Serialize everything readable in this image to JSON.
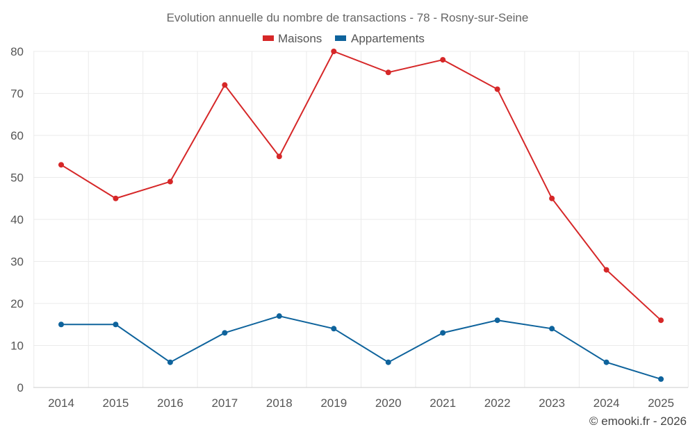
{
  "chart_data": {
    "type": "line",
    "title": "Evolution annuelle du nombre de transactions - 78 - Rosny-sur-Seine",
    "xlabel": "",
    "ylabel": "",
    "categories": [
      "2014",
      "2015",
      "2016",
      "2017",
      "2018",
      "2019",
      "2020",
      "2021",
      "2022",
      "2023",
      "2024",
      "2025"
    ],
    "ylim": [
      0,
      80
    ],
    "yticks": [
      0,
      10,
      20,
      30,
      40,
      50,
      60,
      70,
      80
    ],
    "grid": true,
    "legend_position": "top-center",
    "series": [
      {
        "name": "Maisons",
        "color": "#d62728",
        "values": [
          53,
          45,
          49,
          72,
          55,
          80,
          75,
          78,
          71,
          45,
          28,
          16
        ]
      },
      {
        "name": "Appartements",
        "color": "#0e639c",
        "values": [
          15,
          15,
          6,
          13,
          17,
          14,
          6,
          13,
          16,
          14,
          6,
          2
        ]
      }
    ]
  },
  "credit": "© emooki.fr - 2026"
}
